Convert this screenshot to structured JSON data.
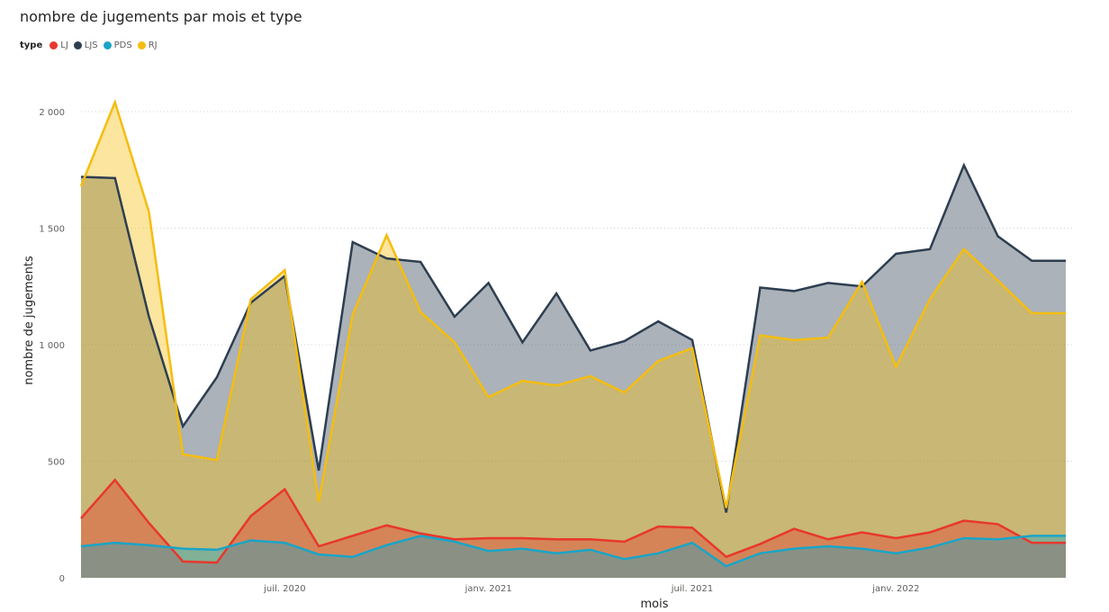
{
  "chart_data": {
    "type": "area",
    "title": "nombre de jugements par mois et type",
    "legend_title": "type",
    "legend_position": "top-left",
    "xlabel": "mois",
    "ylabel": "nombre de jugements",
    "ylim": [
      0,
      2000
    ],
    "yticks": [
      0,
      500,
      1000,
      1500,
      2000
    ],
    "ytick_labels": [
      "0",
      "500",
      "1 000",
      "1 500",
      "2 000"
    ],
    "grid": true,
    "x": [
      "2020-01",
      "2020-02",
      "2020-03",
      "2020-04",
      "2020-05",
      "2020-06",
      "2020-07",
      "2020-08",
      "2020-09",
      "2020-10",
      "2020-11",
      "2020-12",
      "2021-01",
      "2021-02",
      "2021-03",
      "2021-04",
      "2021-05",
      "2021-06",
      "2021-07",
      "2021-08",
      "2021-09",
      "2021-10",
      "2021-11",
      "2021-12",
      "2022-01",
      "2022-02",
      "2022-03",
      "2022-04",
      "2022-05",
      "2022-06"
    ],
    "xticks": [
      "2020-07",
      "2021-01",
      "2021-07",
      "2022-01"
    ],
    "xtick_labels": [
      "juil. 2020",
      "janv. 2021",
      "juil. 2021",
      "janv. 2022"
    ],
    "series": [
      {
        "name": "LJS",
        "color": "#2d3e50",
        "values": [
          1720,
          1715,
          1120,
          650,
          860,
          1180,
          1295,
          460,
          1440,
          1370,
          1355,
          1120,
          1265,
          1010,
          1220,
          975,
          1015,
          1100,
          1020,
          280,
          1245,
          1230,
          1265,
          1250,
          1390,
          1410,
          1770,
          1465,
          1360,
          1360
        ]
      },
      {
        "name": "RJ",
        "color": "#f5bd0f",
        "values": [
          1680,
          2040,
          1570,
          530,
          505,
          1195,
          1320,
          325,
          1130,
          1470,
          1140,
          1010,
          775,
          845,
          825,
          865,
          795,
          930,
          985,
          300,
          1040,
          1020,
          1030,
          1270,
          905,
          1195,
          1410,
          1275,
          1135,
          1135
        ]
      },
      {
        "name": "LJ",
        "color": "#e8372c",
        "values": [
          255,
          420,
          235,
          70,
          65,
          265,
          380,
          135,
          180,
          225,
          190,
          165,
          170,
          170,
          165,
          165,
          155,
          220,
          215,
          90,
          145,
          210,
          165,
          195,
          170,
          195,
          245,
          230,
          150,
          150
        ]
      },
      {
        "name": "PDS",
        "color": "#19a5c8",
        "values": [
          135,
          150,
          140,
          125,
          120,
          160,
          150,
          100,
          90,
          140,
          180,
          155,
          115,
          125,
          105,
          120,
          80,
          105,
          150,
          50,
          105,
          125,
          135,
          125,
          105,
          130,
          170,
          165,
          180,
          180
        ]
      }
    ]
  }
}
